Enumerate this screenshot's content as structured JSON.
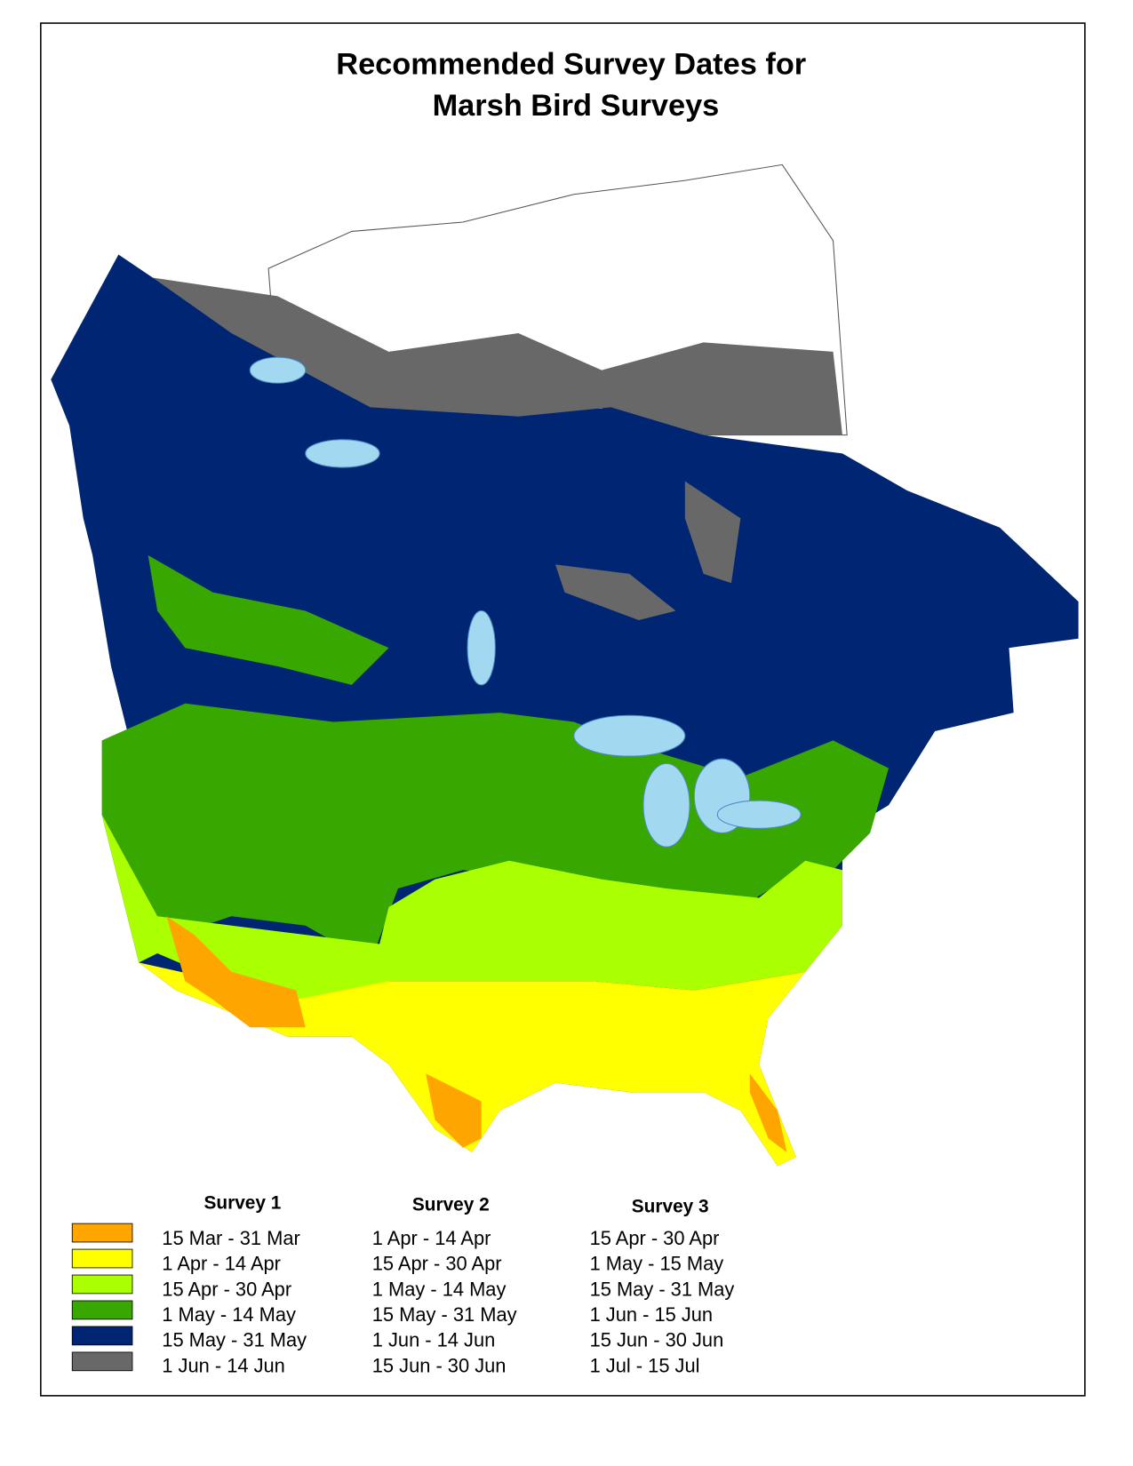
{
  "title": [
    "Recommended Survey Dates for",
    "Marsh Bird Surveys"
  ],
  "legend": {
    "colors": [
      "#ffa500",
      "#ffff00",
      "#aaff00",
      "#38a800",
      "#002673",
      "#686868"
    ],
    "surveys": [
      {
        "name": "Survey 1",
        "dates": [
          "15 Mar - 31 Mar",
          "1 Apr - 14 Apr",
          "15 Apr - 30 Apr",
          "1 May - 14 May",
          "15 May - 31 May",
          "1 Jun - 14 Jun"
        ]
      },
      {
        "name": "Survey 2",
        "dates": [
          "1 Apr - 14 Apr",
          "15 Apr - 30 Apr",
          "1 May - 14 May",
          "15 May - 31 May",
          "1 Jun - 14 Jun",
          "15 Jun - 30 Jun"
        ]
      },
      {
        "name": "Survey 3",
        "dates": [
          "15 Apr - 30 Apr",
          "1 May - 15 May",
          "15 May - 31 May",
          "1 Jun - 15 Jun",
          "15 Jun - 30 Jun",
          "1 Jul - 15 Jul"
        ]
      }
    ]
  }
}
